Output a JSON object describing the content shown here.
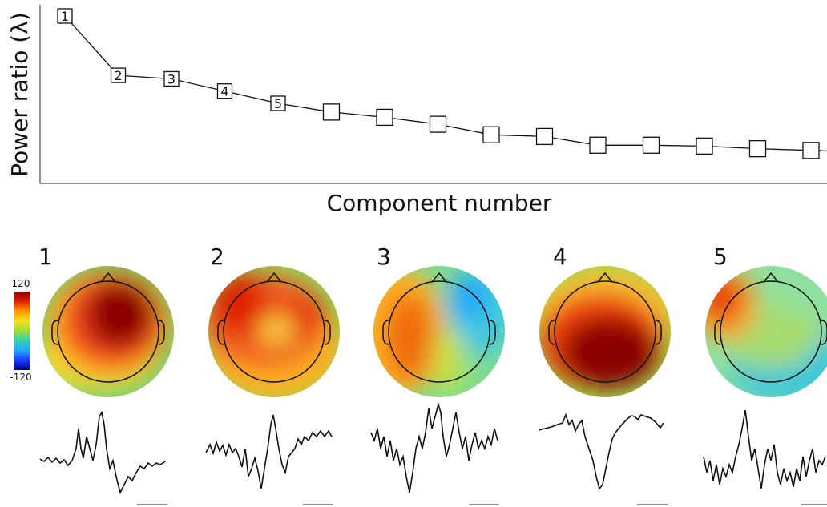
{
  "chart_data": {
    "type": "line",
    "xlabel": "Component number",
    "ylabel": "Power ratio (λ)",
    "x": [
      1,
      2,
      3,
      4,
      5,
      6,
      7,
      8,
      9,
      10,
      11,
      12,
      13,
      14,
      15,
      16
    ],
    "y": [
      1.0,
      0.66,
      0.64,
      0.57,
      0.5,
      0.45,
      0.42,
      0.38,
      0.32,
      0.31,
      0.26,
      0.26,
      0.255,
      0.24,
      0.23,
      0.22
    ],
    "point_labels": [
      "1",
      "2",
      "3",
      "4",
      "5",
      "",
      "",
      "",
      "",
      "",
      "",
      "",
      "",
      "",
      "",
      ""
    ],
    "marker": "square",
    "line_color": "#111111"
  },
  "colorbar": {
    "max_label": "120",
    "min_label": "-120",
    "colors": [
      "#8b0000",
      "#e02000",
      "#ff9a00",
      "#f2e020",
      "#9fdc3a",
      "#33d0b0",
      "#20a8ff",
      "#1a3cff",
      "#00008b"
    ]
  },
  "components": [
    {
      "number": "1"
    },
    {
      "number": "2"
    },
    {
      "number": "3"
    },
    {
      "number": "4"
    },
    {
      "number": "5"
    }
  ]
}
